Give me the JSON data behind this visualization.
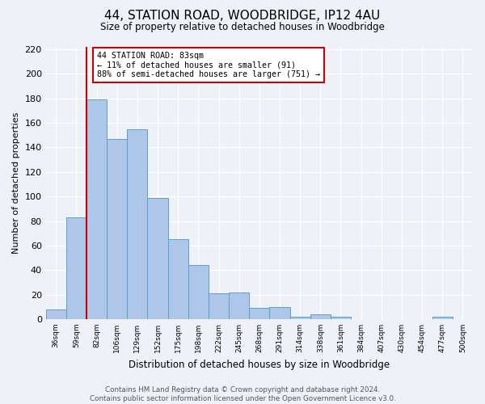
{
  "title": "44, STATION ROAD, WOODBRIDGE, IP12 4AU",
  "subtitle": "Size of property relative to detached houses in Woodbridge",
  "xlabel": "Distribution of detached houses by size in Woodbridge",
  "ylabel": "Number of detached properties",
  "bin_labels": [
    "36sqm",
    "59sqm",
    "82sqm",
    "106sqm",
    "129sqm",
    "152sqm",
    "175sqm",
    "198sqm",
    "222sqm",
    "245sqm",
    "268sqm",
    "291sqm",
    "314sqm",
    "338sqm",
    "361sqm",
    "384sqm",
    "407sqm",
    "430sqm",
    "454sqm",
    "477sqm",
    "500sqm"
  ],
  "bar_heights": [
    8,
    83,
    179,
    147,
    155,
    99,
    65,
    44,
    21,
    22,
    9,
    10,
    2,
    4,
    2,
    0,
    0,
    0,
    0,
    2,
    0
  ],
  "bar_color": "#aec6e8",
  "bar_edge_color": "#5a9fd4",
  "vline_x": 2.5,
  "vline_color": "#cc0000",
  "annotation_text": "44 STATION ROAD: 83sqm\n← 11% of detached houses are smaller (91)\n88% of semi-detached houses are larger (751) →",
  "annotation_box_color": "#ffffff",
  "annotation_box_edge_color": "#cc0000",
  "ylim": [
    0,
    222
  ],
  "yticks": [
    0,
    20,
    40,
    60,
    80,
    100,
    120,
    140,
    160,
    180,
    200,
    220
  ],
  "footer_line1": "Contains HM Land Registry data © Crown copyright and database right 2024.",
  "footer_line2": "Contains public sector information licensed under the Open Government Licence v3.0.",
  "bg_color": "#eef2f8",
  "plot_bg_color": "#eef2f8"
}
